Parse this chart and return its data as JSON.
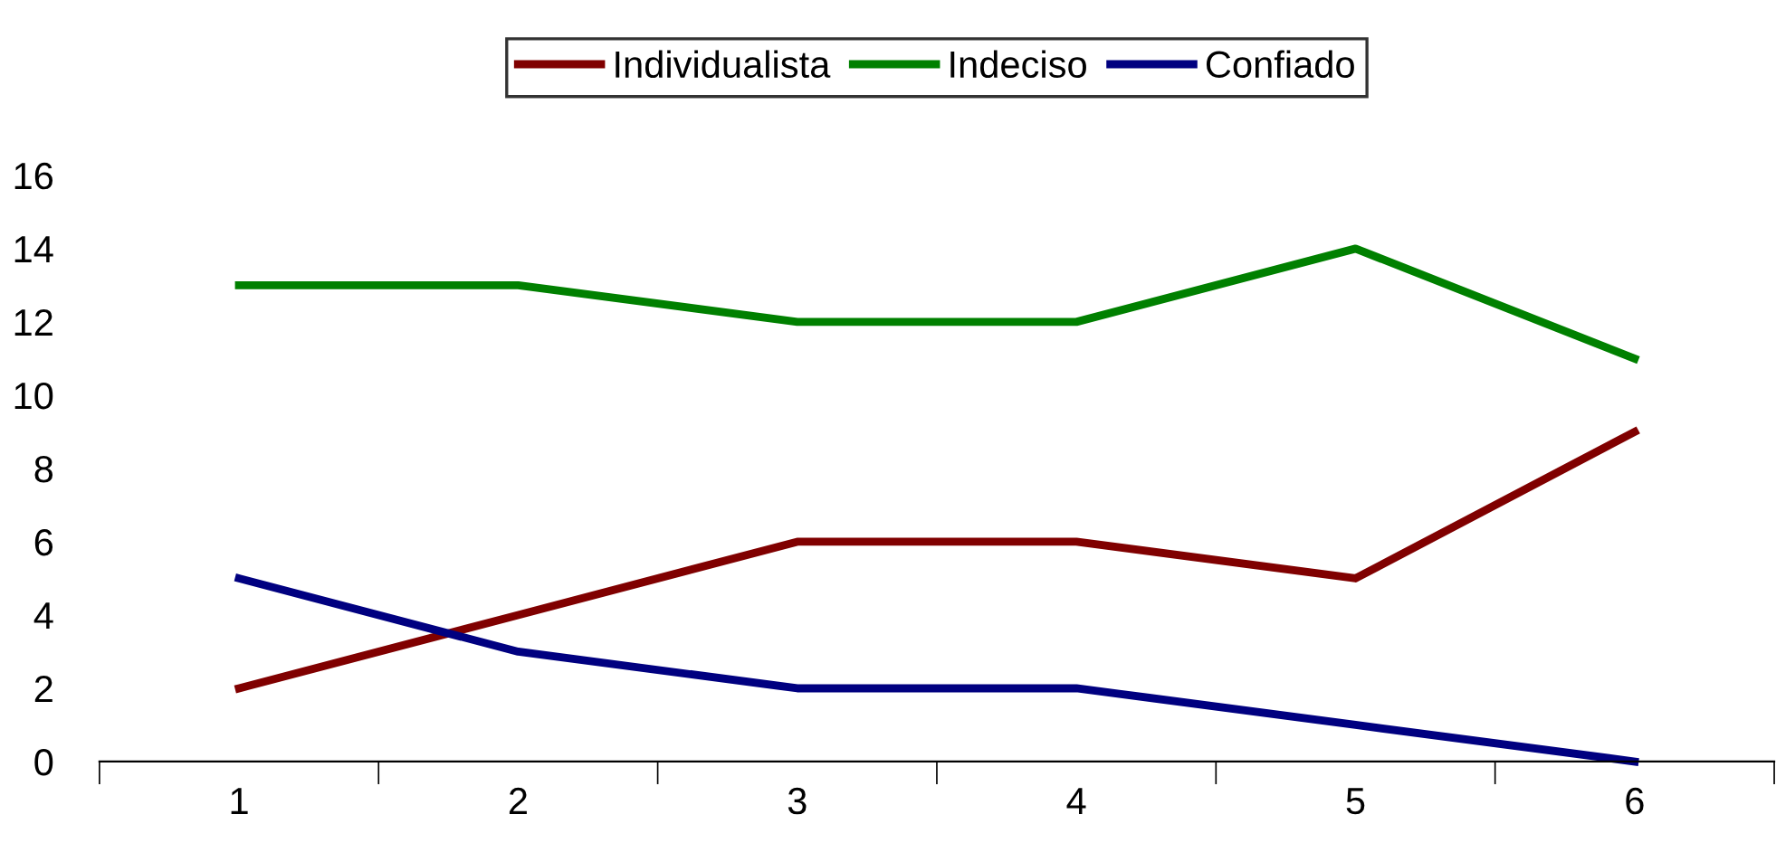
{
  "chart_data": {
    "type": "line",
    "categories": [
      "1",
      "2",
      "3",
      "4",
      "5",
      "6"
    ],
    "series": [
      {
        "name": "Individualista",
        "color": "#800000",
        "values": [
          2,
          4,
          6,
          6,
          5,
          9
        ]
      },
      {
        "name": "Indeciso",
        "color": "#008000",
        "values": [
          13,
          13,
          12,
          12,
          14,
          11
        ]
      },
      {
        "name": "Confiado",
        "color": "#000080",
        "values": [
          5,
          3,
          2,
          2,
          1,
          0
        ]
      }
    ],
    "ylim": [
      0,
      16
    ],
    "yticks": [
      0,
      2,
      4,
      6,
      8,
      10,
      12,
      14,
      16
    ],
    "legend": "top",
    "grid": false,
    "marker": "none",
    "line_style": "solid"
  }
}
